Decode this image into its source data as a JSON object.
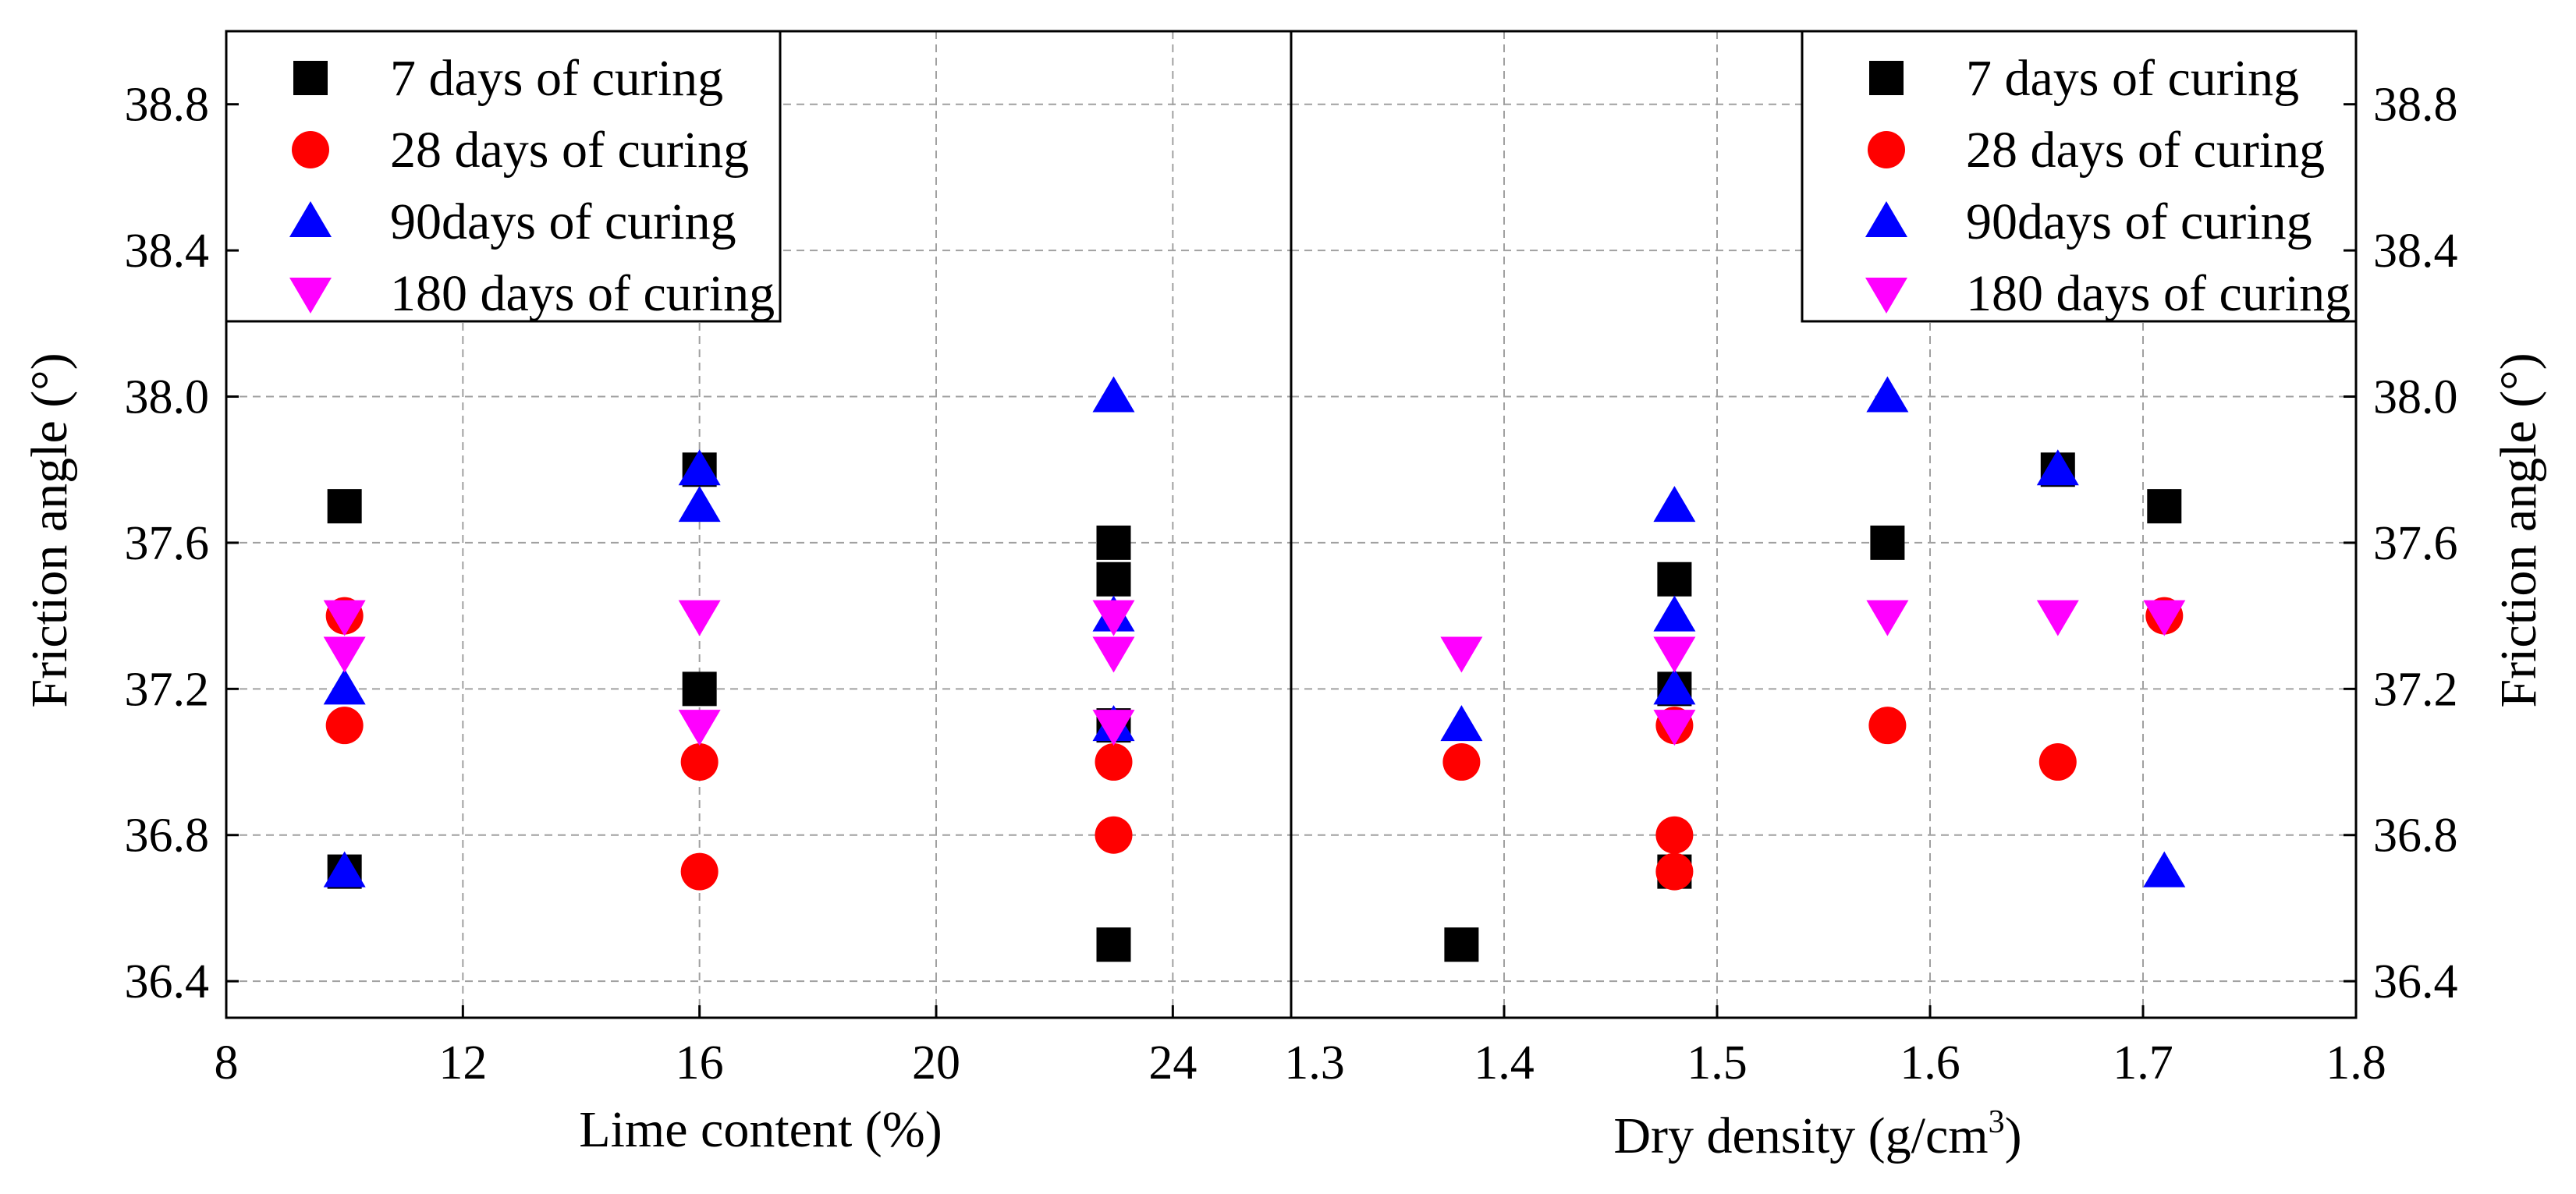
{
  "chart_data": [
    {
      "type": "scatter",
      "panel": "left",
      "xlabel": "Lime content (%)",
      "ylabel": "Friction angle (°)",
      "xlim": [
        8,
        26
      ],
      "ylim": [
        36.3,
        39.0
      ],
      "xticks": [
        8,
        12,
        16,
        20,
        24
      ],
      "yticks": [
        36.4,
        36.8,
        37.2,
        37.6,
        38.0,
        38.4,
        38.8
      ],
      "grid": true,
      "legend_position": "top-left",
      "series": [
        {
          "name": "7 days of curing",
          "marker": "square",
          "color": "#000000",
          "x": [
            10,
            10,
            16,
            16,
            23,
            23,
            23,
            23
          ],
          "y": [
            37.7,
            36.7,
            37.8,
            37.2,
            37.6,
            37.5,
            37.1,
            36.5
          ]
        },
        {
          "name": "28 days of curing",
          "marker": "circle",
          "color": "#ff0000",
          "x": [
            10,
            10,
            16,
            16,
            23,
            23
          ],
          "y": [
            37.4,
            37.1,
            37.0,
            36.7,
            37.0,
            36.8
          ]
        },
        {
          "name": "90days of curing",
          "marker": "triangle-up",
          "color": "#0000ff",
          "x": [
            10,
            10,
            16,
            16,
            23,
            23,
            23
          ],
          "y": [
            37.2,
            36.7,
            37.8,
            37.7,
            38.0,
            37.4,
            37.1
          ]
        },
        {
          "name": "180 days of curing",
          "marker": "triangle-down",
          "color": "#ff00ff",
          "x": [
            10,
            10,
            16,
            16,
            23,
            23,
            23
          ],
          "y": [
            37.4,
            37.3,
            37.4,
            37.1,
            37.4,
            37.3,
            37.1
          ]
        }
      ]
    },
    {
      "type": "scatter",
      "panel": "right",
      "xlabel_main": "Dry density (g/cm",
      "xlabel_sup": "3",
      "xlabel_end": ")",
      "ylabel": "Friction angle (°)",
      "xlim": [
        1.3,
        1.8
      ],
      "ylim": [
        36.3,
        39.0
      ],
      "xticks": [
        1.3,
        1.4,
        1.5,
        1.6,
        1.7,
        1.8
      ],
      "yticks": [
        36.4,
        36.8,
        37.2,
        37.6,
        38.0,
        38.4,
        38.8
      ],
      "grid": true,
      "legend_position": "top-right",
      "series": [
        {
          "name": "7 days of curing",
          "marker": "square",
          "color": "#000000",
          "x": [
            1.38,
            1.48,
            1.48,
            1.48,
            1.58,
            1.66,
            1.71
          ],
          "y": [
            36.5,
            37.5,
            37.2,
            36.7,
            37.6,
            37.8,
            37.7
          ]
        },
        {
          "name": "28 days of curing",
          "marker": "circle",
          "color": "#ff0000",
          "x": [
            1.38,
            1.48,
            1.48,
            1.48,
            1.58,
            1.66,
            1.71
          ],
          "y": [
            37.0,
            37.1,
            36.8,
            36.7,
            37.1,
            37.0,
            37.4
          ]
        },
        {
          "name": "90days of curing",
          "marker": "triangle-up",
          "color": "#0000ff",
          "x": [
            1.38,
            1.48,
            1.48,
            1.48,
            1.58,
            1.66,
            1.71
          ],
          "y": [
            37.1,
            37.7,
            37.4,
            37.2,
            38.0,
            37.8,
            36.7
          ]
        },
        {
          "name": "180 days of curing",
          "marker": "triangle-down",
          "color": "#ff00ff",
          "x": [
            1.38,
            1.48,
            1.48,
            1.58,
            1.66,
            1.71
          ],
          "y": [
            37.3,
            37.3,
            37.1,
            37.4,
            37.4,
            37.4
          ]
        }
      ]
    }
  ]
}
